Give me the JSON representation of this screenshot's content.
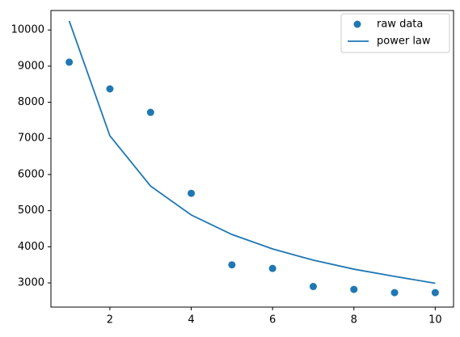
{
  "chart_data": {
    "type": "scatter",
    "x": [
      1,
      2,
      3,
      4,
      5,
      6,
      7,
      8,
      9,
      10
    ],
    "series": [
      {
        "name": "raw data",
        "type": "scatter",
        "color": "#1f77b4",
        "values": [
          9110,
          8370,
          7720,
          5480,
          3500,
          3400,
          2900,
          2820,
          2730,
          2730
        ]
      },
      {
        "name": "power law",
        "type": "line",
        "color": "#1f77b4",
        "values": [
          10250,
          7070,
          5680,
          4880,
          4340,
          3940,
          3630,
          3380,
          3180,
          2990
        ]
      }
    ],
    "xlim": [
      0.55,
      10.45
    ],
    "xticks": [
      2,
      4,
      6,
      8,
      10
    ],
    "ylim": [
      2330,
      10540
    ],
    "yticks": [
      3000,
      4000,
      5000,
      6000,
      7000,
      8000,
      9000,
      10000
    ],
    "legend": "upper right"
  }
}
